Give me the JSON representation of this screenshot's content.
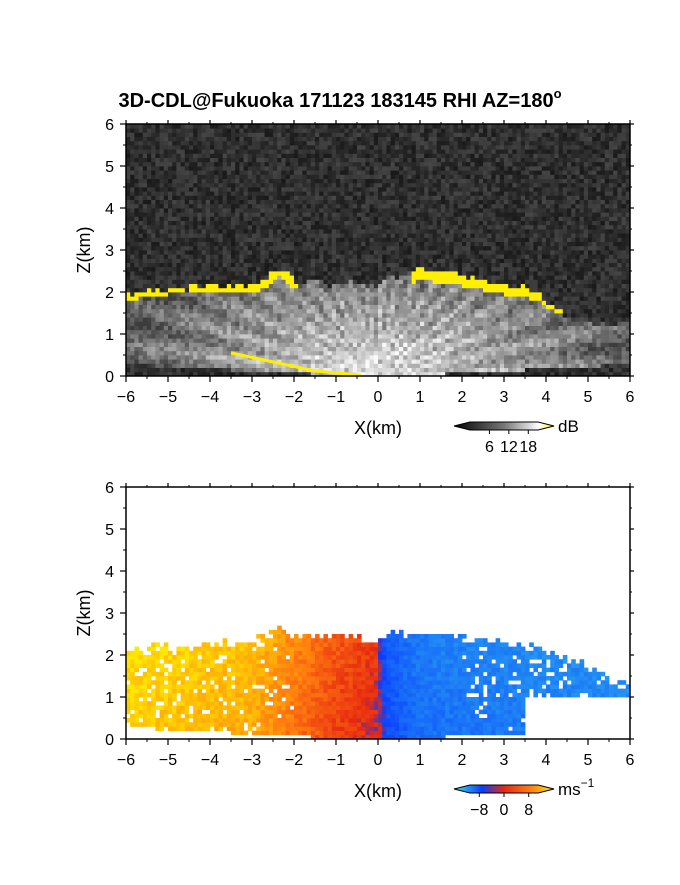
{
  "title": "3D-CDL@Fukuoka 171123 183145 RHI AZ=180",
  "title_superscript": "o",
  "colors": {
    "echo_gray": "#d8d8d8",
    "echo_yellow": "#ffef00",
    "noise_bg": "#262626",
    "vel_blue": "#0a3cff",
    "vel_cyan": "#3ce6e6",
    "vel_red": "#e62810",
    "vel_orange": "#ff7a10",
    "vel_yellow": "#ffe800"
  },
  "chart_data": [
    {
      "type": "heatmap",
      "field": "intensity",
      "xlabel": "X(km)",
      "ylabel": "Z(km)",
      "xlim": [
        -6,
        6
      ],
      "ylim": [
        0,
        6
      ],
      "xticks": [
        -6,
        -5,
        -4,
        -3,
        -2,
        -1,
        0,
        1,
        2,
        3,
        4,
        5,
        6
      ],
      "yticks": [
        0,
        1,
        2,
        3,
        4,
        5,
        6
      ],
      "colorbar": {
        "unit": "dB",
        "ticks": [
          6,
          12,
          18
        ],
        "range": [
          0,
          21
        ]
      },
      "layer_top": {
        "x": [
          -6,
          -5,
          -4,
          -3,
          -2.4,
          -2.1,
          -2,
          -1,
          0,
          1,
          1.6,
          2,
          3,
          3.6,
          4,
          4.5,
          5,
          6
        ],
        "z": [
          1.95,
          2.05,
          2.15,
          2.15,
          2.6,
          2.45,
          2.25,
          2.2,
          2.2,
          2.55,
          2.45,
          2.4,
          2.25,
          2.1,
          1.8,
          1.4,
          1.3,
          1.25
        ]
      },
      "strong_echo_top": {
        "x": [
          -6,
          -5,
          -4,
          -3,
          -2.6,
          -2.4,
          -2.2,
          -1.9,
          0.8,
          1,
          1.5,
          2,
          2.5,
          3,
          3.5,
          3.8,
          4,
          4.4,
          4.7
        ],
        "z": [
          2.0,
          2.15,
          2.2,
          2.2,
          2.3,
          2.6,
          2.5,
          2.2,
          2.3,
          2.55,
          2.4,
          2.35,
          2.25,
          2.15,
          2.1,
          2.0,
          1.85,
          1.65,
          1.6
        ]
      }
    },
    {
      "type": "heatmap",
      "field": "radial velocity",
      "xlabel": "X(km)",
      "ylabel": "Z(km)",
      "xlim": [
        -6,
        6
      ],
      "ylim": [
        0,
        6
      ],
      "xticks": [
        -6,
        -5,
        -4,
        -3,
        -2,
        -1,
        0,
        1,
        2,
        3,
        4,
        5,
        6
      ],
      "yticks": [
        0,
        1,
        2,
        3,
        4,
        5,
        6
      ],
      "colorbar": {
        "unit": "ms",
        "unit_superscript": "−1",
        "ticks": [
          -8,
          0,
          8
        ],
        "range": [
          -11,
          11
        ]
      },
      "layer_top": {
        "x": [
          -6,
          -5,
          -4,
          -3,
          -2.4,
          -2,
          -1,
          0,
          0.4,
          1,
          2,
          3,
          4,
          4.8,
          5.5,
          6
        ],
        "z": [
          2.1,
          2.2,
          2.25,
          2.3,
          2.7,
          2.45,
          2.5,
          2.3,
          2.55,
          2.5,
          2.45,
          2.3,
          2.1,
          1.85,
          1.4,
          1.25
        ]
      },
      "velocity_profile": {
        "x": [
          -6,
          -4.5,
          -3,
          -2,
          -1,
          -0.2,
          0,
          0.2,
          1,
          2,
          3.5,
          6
        ],
        "v": [
          10,
          9,
          8,
          5,
          2,
          0.5,
          0,
          -4,
          -7,
          -7.5,
          -8,
          -9
        ]
      }
    }
  ]
}
